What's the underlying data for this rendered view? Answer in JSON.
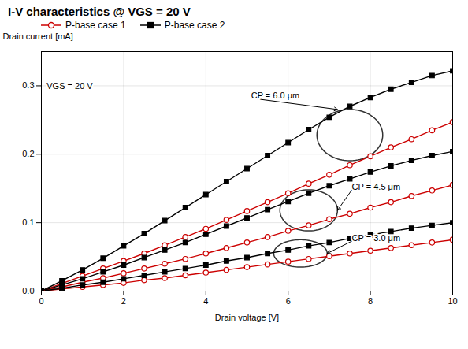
{
  "chart_data": {
    "type": "line",
    "title": "I-V characteristics @ VGS = 20 V",
    "xlabel": "Drain voltage [V]",
    "ylabel": "Drain current [mA]",
    "x": [
      0,
      0.5,
      1.0,
      1.5,
      2.0,
      2.5,
      3.0,
      3.5,
      4.0,
      4.5,
      5.0,
      5.5,
      6.0,
      6.5,
      7.0,
      7.5,
      8.0,
      8.5,
      9.0,
      9.5,
      10.0
    ],
    "series": [
      {
        "name": "P-base case 1",
        "color": "#cc0000",
        "marker": "circle",
        "values": [
          0.0,
          0.011,
          0.022,
          0.033,
          0.044,
          0.055,
          0.067,
          0.079,
          0.091,
          0.104,
          0.117,
          0.13,
          0.143,
          0.157,
          0.17,
          0.184,
          0.197,
          0.21,
          0.222,
          0.235,
          0.247
        ]
      },
      {
        "name": "P-base case 2",
        "color": "#000000",
        "marker": "square",
        "values": [
          0.0,
          0.015,
          0.031,
          0.048,
          0.066,
          0.084,
          0.103,
          0.122,
          0.141,
          0.16,
          0.179,
          0.198,
          0.217,
          0.236,
          0.254,
          0.27,
          0.283,
          0.295,
          0.305,
          0.315,
          0.322
        ]
      },
      {
        "name": "P-base case 1",
        "color": "#cc0000",
        "marker": "circle",
        "values": [
          0.0,
          0.006,
          0.013,
          0.019,
          0.026,
          0.033,
          0.04,
          0.047,
          0.055,
          0.063,
          0.071,
          0.079,
          0.088,
          0.096,
          0.105,
          0.113,
          0.122,
          0.13,
          0.139,
          0.147,
          0.155
        ]
      },
      {
        "name": "P-base case 2",
        "color": "#000000",
        "marker": "square",
        "values": [
          0.0,
          0.009,
          0.018,
          0.028,
          0.038,
          0.049,
          0.06,
          0.071,
          0.083,
          0.095,
          0.107,
          0.119,
          0.131,
          0.143,
          0.154,
          0.164,
          0.174,
          0.183,
          0.191,
          0.198,
          0.204
        ]
      },
      {
        "name": "P-base case 1",
        "color": "#cc0000",
        "marker": "circle",
        "values": [
          0.0,
          0.003,
          0.006,
          0.009,
          0.012,
          0.016,
          0.019,
          0.023,
          0.027,
          0.031,
          0.035,
          0.039,
          0.043,
          0.047,
          0.051,
          0.055,
          0.059,
          0.063,
          0.067,
          0.071,
          0.075
        ]
      },
      {
        "name": "P-base case 2",
        "color": "#000000",
        "marker": "square",
        "values": [
          0.0,
          0.004,
          0.009,
          0.013,
          0.018,
          0.023,
          0.028,
          0.033,
          0.038,
          0.044,
          0.049,
          0.055,
          0.06,
          0.066,
          0.071,
          0.077,
          0.082,
          0.087,
          0.092,
          0.096,
          0.1
        ]
      }
    ],
    "xlim": [
      0,
      10
    ],
    "ylim": [
      0,
      0.35
    ],
    "xticks": [
      0,
      2,
      4,
      6,
      8,
      10
    ],
    "yticks": [
      {
        "value": 0.0,
        "label": "0.0"
      },
      0.1,
      0.2,
      0.3
    ],
    "grid": true,
    "annotations": [
      {
        "text": "VGS = 20 V",
        "x": 0.13,
        "y": 0.295
      },
      {
        "text": "CP = 6.0 μm",
        "x": 5.1,
        "y": 0.282,
        "arrow_x": 7.2,
        "arrow_y": 0.2655
      },
      {
        "text": "CP = 4.5 μm",
        "x": 7.55,
        "y": 0.148,
        "arrow_x": 7.2,
        "arrow_y": 0.118
      },
      {
        "text": "CP = 3.0 μm",
        "x": 7.55,
        "y": 0.073,
        "arrow_x": 6.95,
        "arrow_y": 0.055
      }
    ],
    "ellipses": [
      {
        "cx": 7.5,
        "cy": 0.228,
        "width": 1.6,
        "height": 0.075,
        "color": "#333333"
      },
      {
        "cx": 6.5,
        "cy": 0.118,
        "width": 1.4,
        "height": 0.06,
        "color": "#333333"
      },
      {
        "cx": 6.3,
        "cy": 0.055,
        "width": 1.3,
        "height": 0.04,
        "color": "#333333"
      }
    ]
  }
}
